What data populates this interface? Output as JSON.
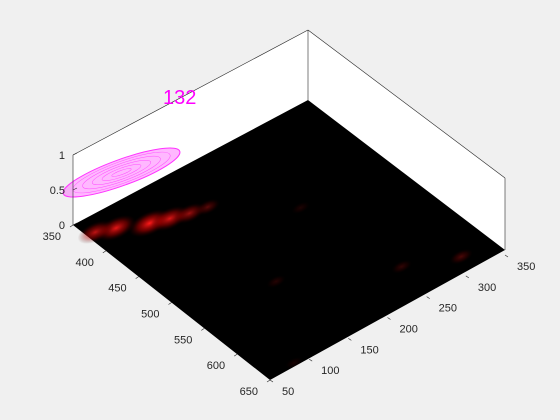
{
  "chart_data": {
    "type": "heatmap",
    "title": "",
    "xlabel": "",
    "ylabel": "",
    "zlabel": "",
    "x_ticks": [
      "50",
      "100",
      "150",
      "200",
      "250",
      "300",
      "350"
    ],
    "y_ticks": [
      "350",
      "400",
      "450",
      "500",
      "550",
      "600",
      "650"
    ],
    "z_ticks": [
      "0",
      "0.5",
      "1"
    ],
    "xlim": [
      50,
      350
    ],
    "ylim": [
      350,
      650
    ],
    "zlim": [
      0,
      1
    ],
    "colormap": "black-to-red",
    "grid": false,
    "hotspots": [
      {
        "x": 110,
        "y": 395,
        "intensity": 1.0,
        "note": "elongated streak"
      },
      {
        "x": 80,
        "y": 380,
        "intensity": 0.9
      },
      {
        "x": 60,
        "y": 372,
        "intensity": 0.75
      },
      {
        "x": 130,
        "y": 402,
        "intensity": 0.85
      },
      {
        "x": 150,
        "y": 408,
        "intensity": 0.6
      },
      {
        "x": 170,
        "y": 412,
        "intensity": 0.35
      },
      {
        "x": 315,
        "y": 625,
        "intensity": 0.3
      },
      {
        "x": 260,
        "y": 600,
        "intensity": 0.2
      },
      {
        "x": 150,
        "y": 540,
        "intensity": 0.15
      },
      {
        "x": 240,
        "y": 470,
        "intensity": 0.12
      },
      {
        "x": 85,
        "y": 645,
        "intensity": 0.1
      }
    ],
    "ellipse": {
      "color": "#ff33ff",
      "z": 1,
      "center_x": 70,
      "center_y": 400,
      "label": "132",
      "label_color": "#ff00ff"
    }
  }
}
